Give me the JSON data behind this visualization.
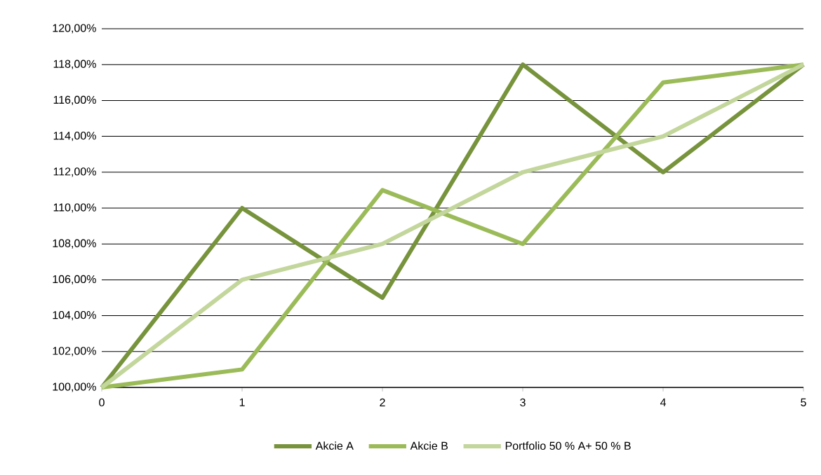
{
  "chart_data": {
    "type": "line",
    "x": [
      0,
      1,
      2,
      3,
      4,
      5
    ],
    "series": [
      {
        "name": "Akcie A",
        "color": "#77933c",
        "values": [
          100,
          110,
          105,
          118,
          112,
          118
        ]
      },
      {
        "name": "Akcie B",
        "color": "#9bbb59",
        "values": [
          100,
          101,
          111,
          108,
          117,
          118
        ]
      },
      {
        "name": "Portfolio 50 % A+ 50 % B",
        "color": "#c3d69b",
        "values": [
          100,
          106,
          108,
          112,
          114,
          118
        ]
      }
    ],
    "xlim": [
      0,
      5
    ],
    "xticks": [
      0,
      1,
      2,
      3,
      4,
      5
    ],
    "ylim": [
      100,
      120
    ],
    "yticks": [
      {
        "value": 100,
        "label": "100,00%"
      },
      {
        "value": 102,
        "label": "102,00%"
      },
      {
        "value": 104,
        "label": "104,00%"
      },
      {
        "value": 106,
        "label": "106,00%"
      },
      {
        "value": 108,
        "label": "108,00%"
      },
      {
        "value": 110,
        "label": "110,00%"
      },
      {
        "value": 112,
        "label": "112,00%"
      },
      {
        "value": 114,
        "label": "114,00%"
      },
      {
        "value": 116,
        "label": "116,00%"
      },
      {
        "value": 118,
        "label": "118,00%"
      },
      {
        "value": 120,
        "label": "120,00%"
      }
    ],
    "grid": "y",
    "legend": "bottom",
    "line_style": "solid"
  }
}
